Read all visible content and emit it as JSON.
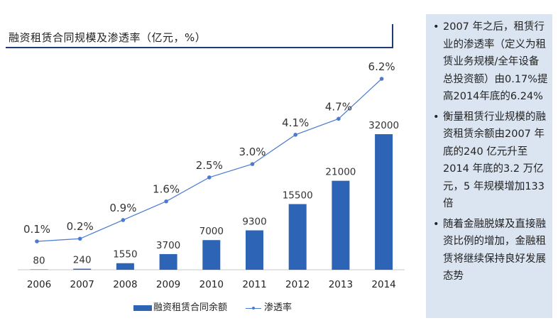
{
  "chart_data": {
    "type": "bar+line",
    "title": "融资租赁合同规模及渗透率（亿元，%）",
    "categories": [
      "2006",
      "2007",
      "2008",
      "2009",
      "2010",
      "2011",
      "2012",
      "2013",
      "2014"
    ],
    "series": [
      {
        "name": "融资租赁合同余额",
        "type": "bar",
        "values": [
          80,
          240,
          1550,
          3700,
          7000,
          9300,
          15500,
          21000,
          32000
        ],
        "labels": [
          "80",
          "240",
          "1550",
          "3700",
          "7000",
          "9300",
          "15500",
          "21000",
          "32000"
        ]
      },
      {
        "name": "渗透率",
        "type": "line",
        "values": [
          0.1,
          0.2,
          0.9,
          1.6,
          2.5,
          3.0,
          4.1,
          4.7,
          6.2
        ],
        "labels": [
          "0.1%",
          "0.2%",
          "0.9%",
          "1.6%",
          "2.5%",
          "3.0%",
          "4.1%",
          "4.7%",
          "6.2%"
        ]
      }
    ],
    "colors": {
      "bar": "#2e64b6",
      "line": "#4a7bd0"
    }
  },
  "sidebar": {
    "bullets": [
      "2007 年之后，租赁行业的渗透率（定义为租赁业务规模/全年设备总投资额）由0.17%提高2014年底的6.24%",
      "衡量租赁行业规模的融资租赁余额由2007 年底的240 亿元升至2014 年底的3.2 万亿元，5 年规模增加133 倍",
      "随着金融脱媒及直接融资比例的增加，金融租赁将继续保持良好发展态势"
    ]
  }
}
